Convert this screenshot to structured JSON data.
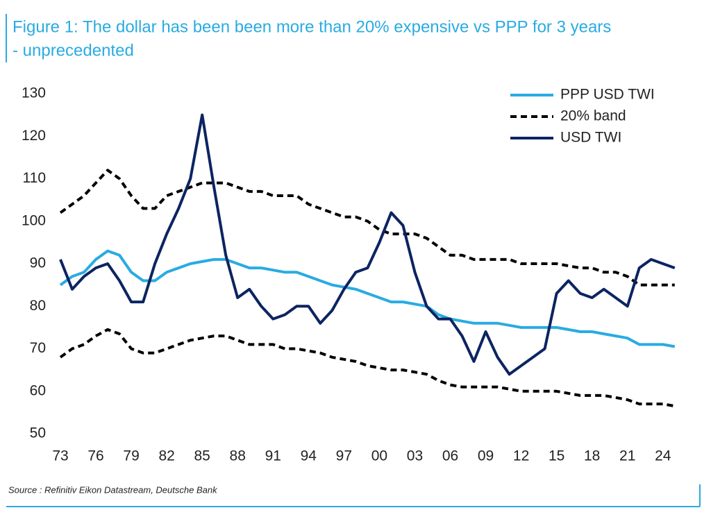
{
  "chart_data": {
    "type": "line",
    "title": "Figure 1: The dollar has been been more than 20% expensive vs PPP for 3 years",
    "subtitle": "- unprecedented",
    "source": "Source : Refinitiv Eikon Datastream, Deutsche Bank",
    "legend": "upper right",
    "grid": false,
    "x": [
      1973,
      1974,
      1975,
      1976,
      1977,
      1978,
      1979,
      1980,
      1981,
      1982,
      1983,
      1984,
      1985,
      1986,
      1987,
      1988,
      1989,
      1990,
      1991,
      1992,
      1993,
      1994,
      1995,
      1996,
      1997,
      1998,
      1999,
      2000,
      2001,
      2002,
      2003,
      2004,
      2005,
      2006,
      2007,
      2008,
      2009,
      2010,
      2011,
      2012,
      2013,
      2014,
      2015,
      2016,
      2017,
      2018,
      2019,
      2020,
      2021,
      2022,
      2023,
      2024,
      2025
    ],
    "xlim": [
      1973,
      2025.6
    ],
    "xticks": [
      {
        "value": 1973,
        "label": "73"
      },
      {
        "value": 1976,
        "label": "76"
      },
      {
        "value": 1979,
        "label": "79"
      },
      {
        "value": 1982,
        "label": "82"
      },
      {
        "value": 1985,
        "label": "85"
      },
      {
        "value": 1988,
        "label": "88"
      },
      {
        "value": 1991,
        "label": "91"
      },
      {
        "value": 1994,
        "label": "94"
      },
      {
        "value": 1997,
        "label": "97"
      },
      {
        "value": 2000,
        "label": "00"
      },
      {
        "value": 2003,
        "label": "03"
      },
      {
        "value": 2006,
        "label": "06"
      },
      {
        "value": 2009,
        "label": "09"
      },
      {
        "value": 2012,
        "label": "12"
      },
      {
        "value": 2015,
        "label": "15"
      },
      {
        "value": 2018,
        "label": "18"
      },
      {
        "value": 2021,
        "label": "21"
      },
      {
        "value": 2024,
        "label": "24"
      }
    ],
    "ylim": [
      50,
      130
    ],
    "yticks": [
      50,
      60,
      70,
      80,
      90,
      100,
      110,
      120,
      130
    ],
    "series": [
      {
        "name": "PPP USD TWI",
        "color": "#29abe2",
        "values": [
          85,
          87,
          88,
          91,
          93,
          92,
          88,
          86,
          86,
          88,
          89,
          90,
          90.5,
          91,
          91,
          90,
          89,
          89,
          88.5,
          88,
          88,
          87,
          86,
          85,
          84.5,
          84,
          83,
          82,
          81,
          81,
          80.5,
          80,
          78,
          77,
          76.5,
          76,
          76,
          76,
          75.5,
          75,
          75,
          75,
          75,
          74.5,
          74,
          74,
          73.5,
          73,
          72.5,
          71,
          71,
          71,
          70.5
        ]
      },
      {
        "name": "20% band",
        "color": "#000000",
        "dashed": true,
        "upper": [
          102,
          104,
          106,
          109,
          112,
          110,
          106,
          103,
          103,
          106,
          107,
          108,
          109,
          109,
          109,
          108,
          107,
          107,
          106,
          106,
          106,
          104,
          103,
          102,
          101,
          101,
          100,
          98,
          97,
          97,
          97,
          96,
          94,
          92,
          92,
          91,
          91,
          91,
          91,
          90,
          90,
          90,
          90,
          89.5,
          89,
          89,
          88,
          88,
          87,
          85,
          85,
          85,
          85
        ],
        "lower": [
          68,
          70,
          71,
          73,
          74.5,
          73.5,
          70,
          69,
          69,
          70,
          71,
          72,
          72.5,
          73,
          73,
          72,
          71,
          71,
          71,
          70,
          70,
          69.5,
          69,
          68,
          67.5,
          67,
          66,
          65.5,
          65,
          65,
          64.5,
          64,
          62.5,
          61.5,
          61,
          61,
          61,
          61,
          60.5,
          60,
          60,
          60,
          60,
          59.5,
          59,
          59,
          59,
          58.5,
          58,
          57,
          57,
          57,
          56.5
        ]
      },
      {
        "name": "USD TWI",
        "color": "#0c2461",
        "values": [
          91,
          84,
          87,
          89,
          90,
          86,
          81,
          81,
          90,
          97,
          103,
          110,
          125,
          108,
          92,
          82,
          84,
          80,
          77,
          78,
          80,
          80,
          76,
          79,
          84,
          88,
          89,
          95,
          102,
          99,
          88,
          80,
          77,
          77,
          73,
          67,
          74,
          68,
          64,
          66,
          68,
          70,
          83,
          86,
          83,
          82,
          84,
          82,
          80,
          89,
          91,
          90,
          89
        ]
      }
    ]
  }
}
